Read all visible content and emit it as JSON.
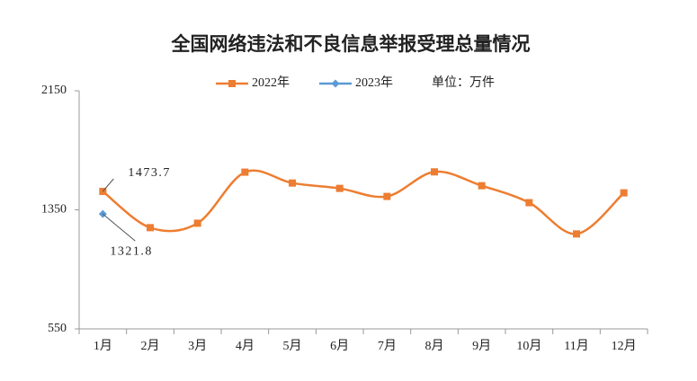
{
  "chart_data": {
    "type": "line",
    "title": "全国网络违法和不良信息举报受理总量情况",
    "unit_note": "单位：万件",
    "categories": [
      "1月",
      "2月",
      "3月",
      "4月",
      "5月",
      "6月",
      "7月",
      "8月",
      "9月",
      "10月",
      "11月",
      "12月"
    ],
    "series": [
      {
        "name": "2022年",
        "color": "#ed7d31",
        "marker": "square",
        "values": [
          1473.7,
          1230,
          1260,
          1603,
          1530,
          1494,
          1440,
          1605,
          1512,
          1398,
          1188,
          1464
        ],
        "value_labels": [
          "1473.7",
          null,
          null,
          null,
          null,
          null,
          null,
          null,
          null,
          null,
          null,
          null
        ]
      },
      {
        "name": "2023年",
        "color": "#5b9bd5",
        "marker": "diamond",
        "values": [
          1321.8,
          null,
          null,
          null,
          null,
          null,
          null,
          null,
          null,
          null,
          null,
          null
        ],
        "value_labels": [
          "1321.8",
          null,
          null,
          null,
          null,
          null,
          null,
          null,
          null,
          null,
          null,
          null
        ]
      }
    ],
    "ylim": [
      550,
      2150
    ],
    "yticks": [
      550,
      1350,
      2150
    ],
    "smooth": true
  }
}
